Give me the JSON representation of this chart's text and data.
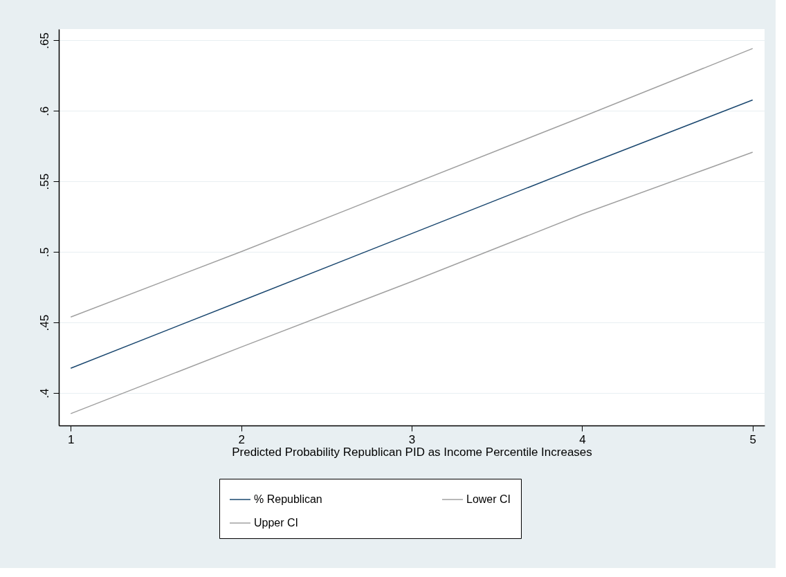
{
  "chart_data": {
    "type": "line",
    "xlabel": "Predicted Probability Republican PID as Income Percentile Increases",
    "x": [
      1,
      2,
      3,
      4,
      5
    ],
    "series": [
      {
        "name": "% Republican",
        "color": "#1a476f",
        "values": [
          0.4176,
          0.4653,
          0.513,
          0.5608,
          0.6077
        ]
      },
      {
        "name": "Lower CI",
        "color": "#a0a0a0",
        "values": [
          0.3854,
          0.4326,
          0.479,
          0.5268,
          0.5707
        ]
      },
      {
        "name": "Upper CI",
        "color": "#a0a0a0",
        "values": [
          0.4539,
          0.5002,
          0.548,
          0.5957,
          0.6442
        ]
      }
    ],
    "xlim": [
      0.93,
      5.07
    ],
    "xticks": [
      1,
      2,
      3,
      4,
      5
    ],
    "ylim": [
      0.377,
      0.658
    ],
    "yticks": [
      {
        "value": 0.4,
        "label": ".4"
      },
      {
        "value": 0.45,
        "label": ".45"
      },
      {
        "value": 0.5,
        "label": ".5"
      },
      {
        "value": 0.55,
        "label": ".55"
      },
      {
        "value": 0.6,
        "label": ".6"
      },
      {
        "value": 0.65,
        "label": ".65"
      }
    ],
    "grid": "y",
    "legend": "bottom",
    "marker": "none",
    "line_style": "solid"
  }
}
